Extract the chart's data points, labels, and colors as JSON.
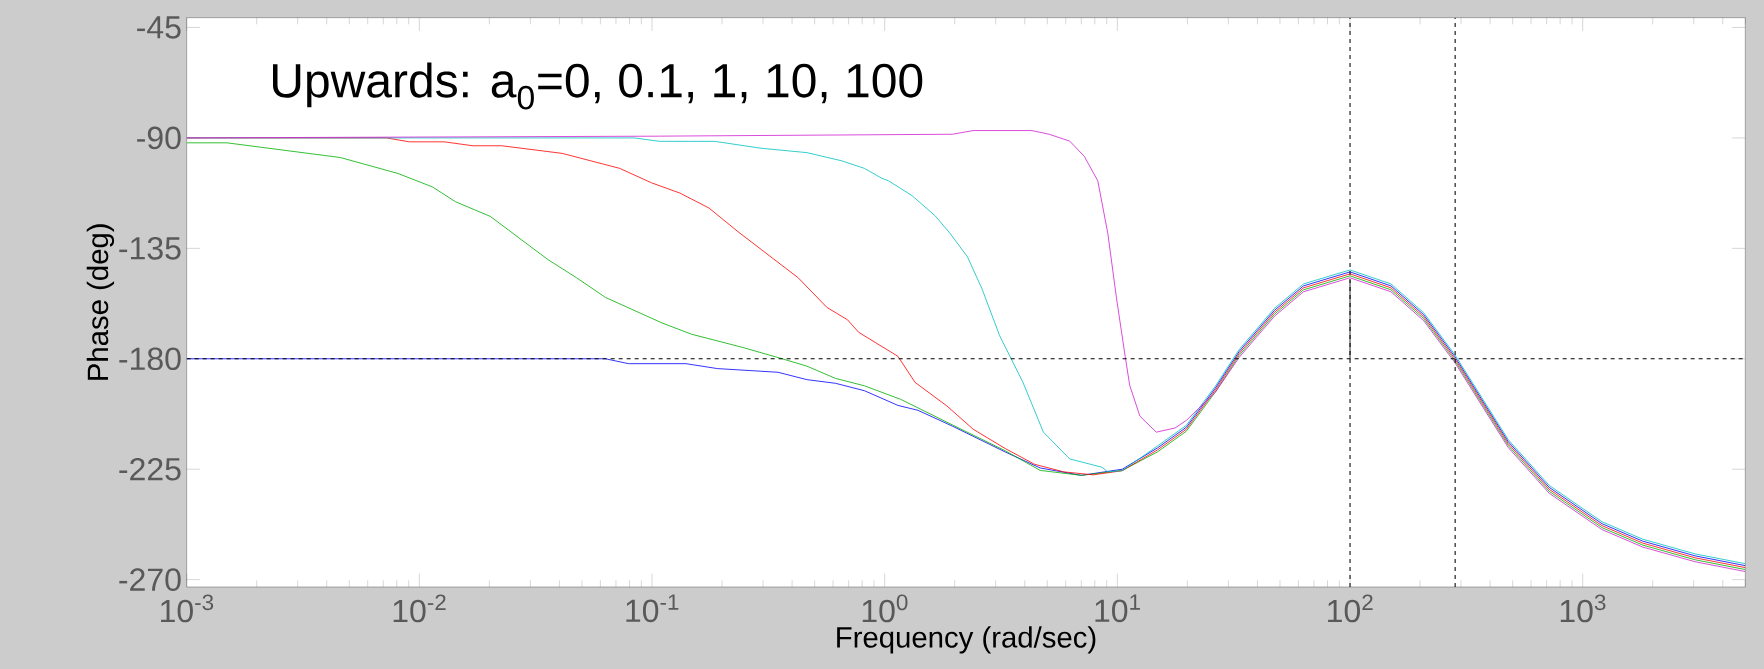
{
  "chart_data": {
    "type": "line",
    "xlabel": "Frequency  (rad/sec)",
    "ylabel": "Phase (deg)",
    "annotations": [
      "Upwards: a$_{0}$=0, 0.1, 1, 10, 100"
    ],
    "log": "x",
    "grid": false,
    "marker": "none",
    "line_style": "solid",
    "xlim": [
      0.001,
      5000
    ],
    "ylim": [
      -273,
      -41
    ],
    "xticks": [
      {
        "value": 0.001,
        "label": "10$^{-3}$"
      },
      {
        "value": 0.01,
        "label": "10$^{-2}$"
      },
      {
        "value": 0.1,
        "label": "10$^{-1}$"
      },
      {
        "value": 1,
        "label": "10$^{0}$"
      },
      {
        "value": 10,
        "label": "10$^{1}$"
      },
      {
        "value": 100,
        "label": "10$^{2}$"
      },
      {
        "value": 1000,
        "label": "10$^{3}$"
      }
    ],
    "yticks": [
      -45,
      -90,
      -135,
      -180,
      -225,
      -270
    ],
    "ref_lines": [
      {
        "axis": "y",
        "value": -180,
        "color": "#000000",
        "line_style": "dashed"
      },
      {
        "axis": "x",
        "value": 100,
        "color": "#000000",
        "line_style": "dashed"
      },
      {
        "axis": "x",
        "value": 283,
        "color": "#000000",
        "line_style": "dashed"
      }
    ],
    "series": [
      {
        "color": "#0000ff",
        "x": [
          0.001,
          0.0631,
          0.0793,
          0.14,
          0.191,
          0.348,
          0.463,
          0.615,
          0.818,
          1.14,
          1.39,
          1.96,
          3.3,
          4.66,
          7.0,
          10.5,
          14.9,
          19.8,
          26.4,
          33.4,
          47.3,
          63.1,
          100,
          150,
          207,
          282,
          479,
          718,
          1210,
          1810,
          3040,
          5000
        ],
        "values": [
          -180,
          -180,
          -182,
          -182,
          -184,
          -185.5,
          -188.5,
          -190,
          -193,
          -199,
          -201,
          -207.5,
          -218,
          -224.5,
          -227.5,
          -225,
          -216.3,
          -207.9,
          -191.9,
          -177,
          -160.3,
          -150.3,
          -144.6,
          -150.3,
          -162,
          -179.1,
          -213.8,
          -232.4,
          -247.2,
          -254.3,
          -260.3,
          -264.3
        ]
      },
      {
        "color": "#00b000",
        "x": [
          0.001,
          0.00149,
          0.00458,
          0.0081,
          0.0114,
          0.0143,
          0.0202,
          0.0356,
          0.0474,
          0.0631,
          0.111,
          0.148,
          0.248,
          0.348,
          0.463,
          0.615,
          0.818,
          1.17,
          1.96,
          3.3,
          4.66,
          7.0,
          10.5,
          14.9,
          19.8,
          26.4,
          33.4,
          47.3,
          63.1,
          100,
          150,
          207,
          282,
          479,
          718,
          1210,
          1810,
          3040,
          5000
        ],
        "values": [
          -92,
          -92,
          -98,
          -104.5,
          -110,
          -116,
          -122,
          -139.5,
          -147,
          -155,
          -165.5,
          -170,
          -175.5,
          -179.5,
          -183,
          -188,
          -191,
          -196.5,
          -207,
          -217.5,
          -225.5,
          -227.5,
          -225.5,
          -217.9,
          -209.5,
          -193.5,
          -178.6,
          -161.9,
          -151.9,
          -146.2,
          -151.9,
          -163.6,
          -180.7,
          -215.4,
          -234,
          -248.8,
          -255.9,
          -261.9,
          -265.9
        ]
      },
      {
        "color": "#ff0000",
        "x": [
          0.001,
          0.00721,
          0.00908,
          0.0128,
          0.017,
          0.0226,
          0.0411,
          0.0726,
          0.0995,
          0.132,
          0.176,
          0.234,
          0.425,
          0.565,
          0.692,
          0.773,
          1.14,
          1.35,
          1.85,
          2.4,
          3.3,
          4.41,
          5.89,
          7.87,
          10.5,
          14.9,
          19.8,
          26.4,
          33.4,
          47.3,
          63.1,
          100,
          150,
          207,
          282,
          479,
          718,
          1210,
          1810,
          3040,
          5000
        ],
        "values": [
          -90,
          -90,
          -91.6,
          -91.6,
          -93.2,
          -93.2,
          -96.3,
          -102.4,
          -108.3,
          -112.5,
          -118.6,
          -128.2,
          -147,
          -159.1,
          -164.1,
          -169.2,
          -179,
          -189.6,
          -199.2,
          -208.7,
          -216.6,
          -223,
          -226.1,
          -227.3,
          -225.6,
          -217.1,
          -208.7,
          -192.7,
          -177.8,
          -161.1,
          -151.1,
          -145.4,
          -151.1,
          -162.8,
          -179.9,
          -214.6,
          -233.2,
          -248,
          -255.1,
          -261.1,
          -265.1
        ]
      },
      {
        "color": "#00c0c0",
        "x": [
          0.001,
          0.0838,
          0.108,
          0.186,
          0.294,
          0.463,
          0.652,
          0.818,
          0.97,
          1.04,
          1.31,
          1.65,
          1.91,
          2.27,
          2.62,
          3.12,
          3.93,
          4.81,
          6.24,
          8.59,
          9.1,
          10.5,
          14.9,
          19.8,
          26.4,
          33.4,
          47.3,
          63.1,
          100,
          150,
          207,
          282,
          479,
          718,
          1210,
          1810,
          3040,
          5000
        ],
        "values": [
          -90,
          -90,
          -91.4,
          -91.4,
          -94.2,
          -96,
          -99.3,
          -102.4,
          -106.4,
          -107.5,
          -113.5,
          -121.8,
          -128.9,
          -138.5,
          -151.5,
          -170.6,
          -189.6,
          -209.9,
          -220.8,
          -224.2,
          -226.1,
          -225.6,
          -215.5,
          -207.1,
          -191.1,
          -176.2,
          -159.5,
          -149.5,
          -143.8,
          -149.5,
          -161.2,
          -178.3,
          -213,
          -231.6,
          -246.4,
          -253.5,
          -259.5,
          -263.5
        ]
      },
      {
        "color": "#d020d0",
        "x": [
          0.001,
          0.1,
          1.96,
          2.4,
          4.29,
          5.09,
          6.24,
          7.21,
          8.24,
          9.1,
          9.91,
          10.8,
          11.3,
          12.5,
          14.7,
          17.7,
          19.8,
          26.4,
          33.4,
          47.3,
          63.1,
          100,
          150,
          207,
          282,
          479,
          718,
          1210,
          1810,
          3040,
          5000
        ],
        "values": [
          -90,
          -89.3,
          -88.5,
          -87,
          -87,
          -88.5,
          -91.3,
          -97.5,
          -107.5,
          -128.9,
          -155.1,
          -178.9,
          -190.8,
          -203.4,
          -209.9,
          -208.2,
          -205.1,
          -193.6,
          -179.4,
          -162.7,
          -152.7,
          -147,
          -152.7,
          -164.4,
          -181.5,
          -216.2,
          -234.8,
          -249.6,
          -256.7,
          -262.7,
          -266.7
        ]
      },
      {
        "color": "#000000",
        "x": [
          100,
          100
        ],
        "values": [
          -180,
          -148
        ]
      }
    ]
  }
}
